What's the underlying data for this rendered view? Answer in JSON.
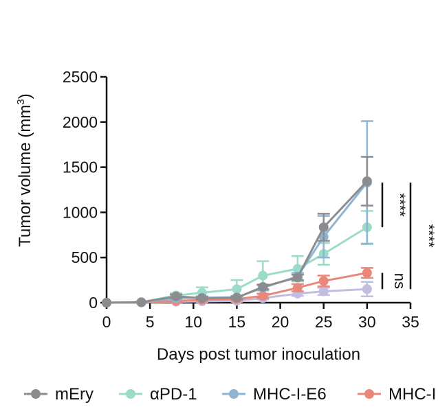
{
  "chart_data": {
    "type": "line",
    "xlabel": "Days post tumor inoculation",
    "ylabel_main": "Tumor volume (mm",
    "ylabel_sup": "3",
    "ylabel_close": ")",
    "xlim": [
      0,
      35
    ],
    "ylim": [
      0,
      2500
    ],
    "xticks": [
      0,
      5,
      10,
      15,
      20,
      25,
      30,
      35
    ],
    "yticks": [
      0,
      500,
      1000,
      1500,
      2000,
      2500
    ],
    "x_tick_labels": [
      "0",
      "5",
      "10",
      "15",
      "20",
      "25",
      "30",
      "35"
    ],
    "y_tick_labels": [
      "0",
      "500",
      "1000",
      "1500",
      "2000",
      "2500"
    ],
    "grid": false,
    "legend_position": "bottom",
    "series": [
      {
        "name": "mEry",
        "color": "#8c8c8e",
        "x": [
          0,
          4,
          8,
          11,
          15,
          18,
          22,
          25,
          30
        ],
        "y": [
          0,
          5,
          70,
          50,
          55,
          175,
          280,
          835,
          1345
        ],
        "err": [
          0,
          5,
          20,
          15,
          15,
          25,
          30,
          150,
          270
        ]
      },
      {
        "name": "αPD-1",
        "color": "#9adcc8",
        "x": [
          0,
          4,
          8,
          11,
          15,
          18,
          22,
          25,
          30
        ],
        "y": [
          0,
          5,
          80,
          110,
          150,
          300,
          375,
          540,
          835
        ],
        "err": [
          0,
          5,
          25,
          60,
          100,
          160,
          140,
          120,
          180
        ]
      },
      {
        "name": "MHC-I-E6",
        "color": "#8fb5d2",
        "x": [
          0,
          4,
          8,
          11,
          15,
          18,
          22,
          25,
          30
        ],
        "y": [
          0,
          5,
          50,
          55,
          60,
          165,
          290,
          730,
          1330
        ],
        "err": [
          0,
          5,
          15,
          15,
          15,
          30,
          40,
          230,
          680
        ]
      },
      {
        "name": "MHC-I",
        "color": "#e8877a",
        "x": [
          0,
          4,
          8,
          11,
          15,
          18,
          22,
          25,
          30
        ],
        "y": [
          0,
          2,
          20,
          30,
          40,
          75,
          165,
          240,
          330
        ],
        "err": [
          0,
          2,
          10,
          12,
          15,
          25,
          40,
          60,
          55
        ]
      },
      {
        "name": "",
        "color": "#c3bee0",
        "x": [
          0,
          4,
          8,
          11,
          15,
          18,
          22,
          25,
          30
        ],
        "y": [
          0,
          2,
          10,
          15,
          20,
          50,
          100,
          125,
          150
        ],
        "err": [
          0,
          2,
          5,
          8,
          10,
          15,
          25,
          40,
          80
        ]
      }
    ],
    "significance": [
      {
        "label": "****",
        "y_from": 835,
        "y_to": 1330
      },
      {
        "label": "ns",
        "y_from": 150,
        "y_to": 330
      },
      {
        "label": "****",
        "y_from": 150,
        "y_to": 1330
      }
    ]
  }
}
